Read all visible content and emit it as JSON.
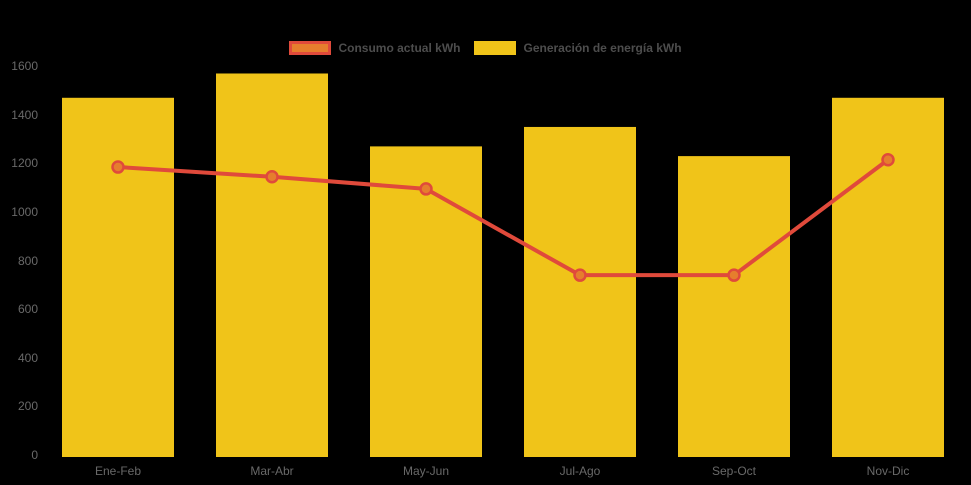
{
  "page": {
    "background": "#000000"
  },
  "legend": {
    "text_color": "#4D4D4D",
    "items": [
      {
        "id": "consumo",
        "label": "Consumo actual kWh",
        "swatch_fill": "#E67E2D",
        "swatch_border": "#E04A3B"
      },
      {
        "id": "generacion",
        "label": "Generación de energía kWh",
        "swatch_fill": "#F0C419",
        "swatch_border": "#F0C419"
      }
    ]
  },
  "axes": {
    "y_tick_color": "#696969",
    "x_label_color": "#696969"
  },
  "chart_data": {
    "type": "bar",
    "title": "",
    "xlabel": "",
    "ylabel": "",
    "categories": [
      "Ene-Feb",
      "Mar-Abr",
      "May-Jun",
      "Jul-Ago",
      "Sep-Oct",
      "Nov-Dic"
    ],
    "series": [
      {
        "name": "Generación de energía kWh",
        "type": "bar",
        "color": "#F0C419",
        "values": [
          1470,
          1570,
          1270,
          1350,
          1230,
          1470
        ]
      },
      {
        "name": "Consumo actual kWh",
        "type": "line",
        "color": "#E04A3B",
        "marker_fill": "#E67E2D",
        "marker_stroke": "#E04A3B",
        "values": [
          1185,
          1145,
          1095,
          740,
          740,
          1215
        ]
      }
    ],
    "ylim": [
      0,
      1600
    ],
    "yticks": [
      0,
      200,
      400,
      600,
      800,
      1000,
      1200,
      1400,
      1600
    ],
    "grid": false,
    "legend_position": "top"
  }
}
